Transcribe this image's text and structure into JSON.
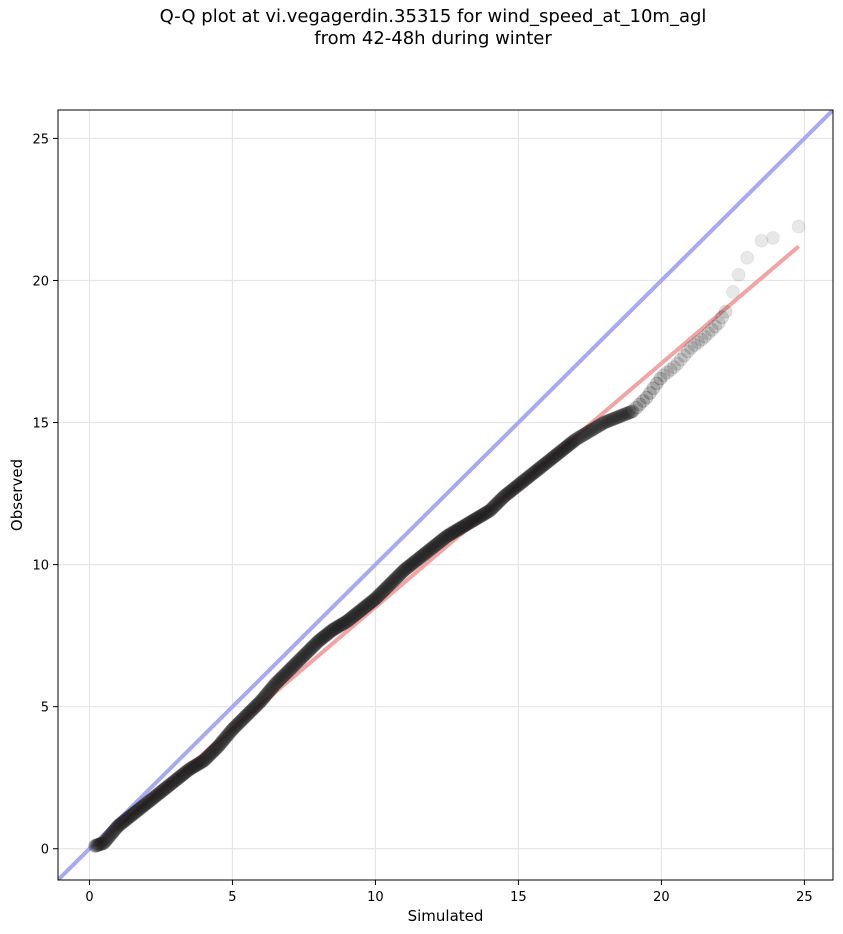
{
  "chart_data": {
    "type": "scatter",
    "title_line1": "Q-Q plot at vi.vegagerdin.35315 for wind_speed_at_10m_agl",
    "title_line2": "from 42-48h during winter",
    "xlabel": "Simulated",
    "ylabel": "Observed",
    "xlim": [
      -1.1,
      26.0
    ],
    "ylim": [
      -1.1,
      26.0
    ],
    "xticks": [
      0,
      5,
      10,
      15,
      20,
      25
    ],
    "yticks": [
      0,
      5,
      10,
      15,
      20,
      25
    ],
    "grid": true,
    "colors": {
      "identity_line": "#a7a9f2",
      "fit_line": "#f4a3a3",
      "points": "#1a1a1a"
    },
    "identity_line": {
      "x": [
        -1.1,
        26.0
      ],
      "y": [
        -1.1,
        26.0
      ]
    },
    "fit_line": {
      "x": [
        0.2,
        24.8
      ],
      "y": [
        0.1,
        21.2
      ]
    },
    "points_curve": {
      "x": [
        0.2,
        0.5,
        1.0,
        1.5,
        2.0,
        2.5,
        3.0,
        3.5,
        4.0,
        4.5,
        5.0,
        5.5,
        6.0,
        6.5,
        7.0,
        7.5,
        8.0,
        8.5,
        9.0,
        9.5,
        10.0,
        10.5,
        11.0,
        11.5,
        12.0,
        12.5,
        13.0,
        13.5,
        14.0,
        14.5,
        15.0,
        15.5,
        16.0,
        16.5,
        17.0,
        17.5,
        18.0,
        18.5,
        19.0,
        19.5,
        20.0,
        20.5,
        21.0,
        21.5,
        22.0,
        22.3,
        22.5,
        22.7,
        23.0,
        23.5,
        23.9,
        24.8
      ],
      "y": [
        0.1,
        0.2,
        0.8,
        1.2,
        1.6,
        2.0,
        2.4,
        2.8,
        3.1,
        3.6,
        4.2,
        4.7,
        5.2,
        5.8,
        6.3,
        6.8,
        7.3,
        7.7,
        8.0,
        8.4,
        8.8,
        9.3,
        9.8,
        10.2,
        10.6,
        11.0,
        11.3,
        11.6,
        11.9,
        12.4,
        12.8,
        13.2,
        13.6,
        14.0,
        14.4,
        14.7,
        15.0,
        15.2,
        15.4,
        15.9,
        16.6,
        17.0,
        17.6,
        18.0,
        18.5,
        19.0,
        19.6,
        20.2,
        20.8,
        21.4,
        21.5,
        21.9
      ]
    }
  }
}
